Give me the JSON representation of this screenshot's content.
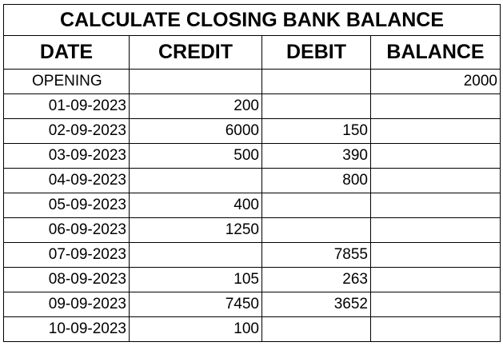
{
  "title": "CALCULATE CLOSING BANK BALANCE",
  "headers": {
    "date": "DATE",
    "credit": "CREDIT",
    "debit": "DEBIT",
    "balance": "BALANCE"
  },
  "rows": [
    {
      "date": "OPENING",
      "credit": "",
      "debit": "",
      "balance": "2000"
    },
    {
      "date": "01-09-2023",
      "credit": "200",
      "debit": "",
      "balance": ""
    },
    {
      "date": "02-09-2023",
      "credit": "6000",
      "debit": "150",
      "balance": ""
    },
    {
      "date": "03-09-2023",
      "credit": "500",
      "debit": "390",
      "balance": ""
    },
    {
      "date": "04-09-2023",
      "credit": "",
      "debit": "800",
      "balance": ""
    },
    {
      "date": "05-09-2023",
      "credit": "400",
      "debit": "",
      "balance": ""
    },
    {
      "date": "06-09-2023",
      "credit": "1250",
      "debit": "",
      "balance": ""
    },
    {
      "date": "07-09-2023",
      "credit": "",
      "debit": "7855",
      "balance": ""
    },
    {
      "date": "08-09-2023",
      "credit": "105",
      "debit": "263",
      "balance": ""
    },
    {
      "date": "09-09-2023",
      "credit": "7450",
      "debit": "3652",
      "balance": ""
    },
    {
      "date": "10-09-2023",
      "credit": "100",
      "debit": "",
      "balance": ""
    }
  ]
}
